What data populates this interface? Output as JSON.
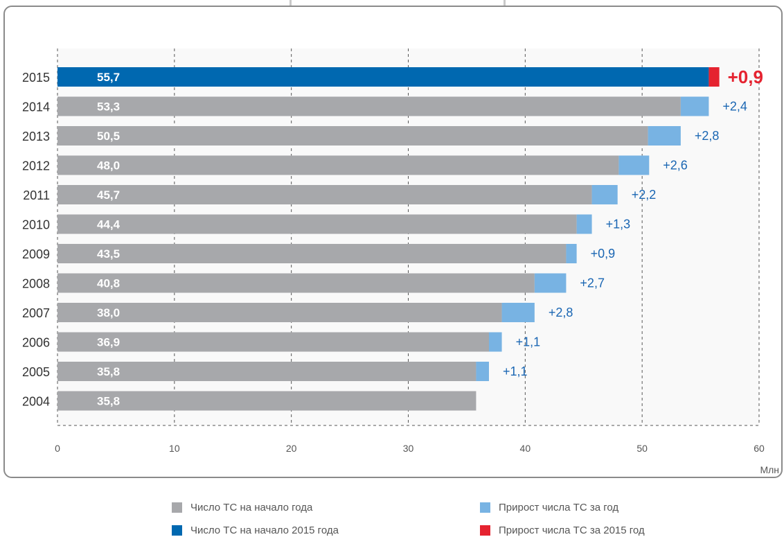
{
  "chart_data": {
    "type": "bar",
    "orientation": "horizontal",
    "stacked": true,
    "categories": [
      "2015",
      "2014",
      "2013",
      "2012",
      "2011",
      "2010",
      "2009",
      "2008",
      "2007",
      "2006",
      "2005",
      "2004"
    ],
    "series": [
      {
        "name": "Число ТС на начало года",
        "color": "#a7a8ab",
        "values": [
          null,
          53.3,
          50.5,
          48.0,
          45.7,
          44.4,
          43.5,
          40.8,
          38.0,
          36.9,
          35.8,
          35.8
        ],
        "labels": [
          "",
          "53,3",
          "50,5",
          "48,0",
          "45,7",
          "44,4",
          "43,5",
          "40,8",
          "38,0",
          "36,9",
          "35,8",
          "35,8"
        ]
      },
      {
        "name": "Число ТС на начало 2015 года",
        "color": "#0068b0",
        "values": [
          55.7,
          null,
          null,
          null,
          null,
          null,
          null,
          null,
          null,
          null,
          null,
          null
        ],
        "labels": [
          "55,7",
          "",
          "",
          "",
          "",
          "",
          "",
          "",
          "",
          "",
          "",
          ""
        ]
      },
      {
        "name": "Прирост числа ТС за год",
        "color": "#78b3e3",
        "values": [
          null,
          2.4,
          2.8,
          2.6,
          2.2,
          1.3,
          0.9,
          2.7,
          2.8,
          1.1,
          1.1,
          null
        ],
        "labels": [
          "",
          "+2,4",
          "+2,8",
          "+2,6",
          "+2,2",
          "+1,3",
          "+0,9",
          "+2,7",
          "+2,8",
          "+1,1",
          "+1,1",
          ""
        ]
      },
      {
        "name": "Прирост числа ТС за 2015 год",
        "color": "#e52330",
        "values": [
          0.9,
          null,
          null,
          null,
          null,
          null,
          null,
          null,
          null,
          null,
          null,
          null
        ],
        "labels": [
          "+0,9",
          "",
          "",
          "",
          "",
          "",
          "",
          "",
          "",
          "",
          "",
          ""
        ]
      }
    ],
    "xlim": [
      0,
      60
    ],
    "xticks": [
      "0",
      "10",
      "20",
      "30",
      "40",
      "50",
      "60"
    ],
    "xlabel": "Млн",
    "grid": true,
    "legend_position": "bottom"
  },
  "legend": {
    "items": [
      {
        "label": "Число ТС на начало года",
        "color": "#a7a8ab"
      },
      {
        "label": "Прирост числа ТС за год",
        "color": "#78b3e3"
      },
      {
        "label": "Число ТС на начало 2015 года",
        "color": "#0068b0"
      },
      {
        "label": "Прирост числа ТС за 2015 год",
        "color": "#e52330"
      }
    ]
  }
}
